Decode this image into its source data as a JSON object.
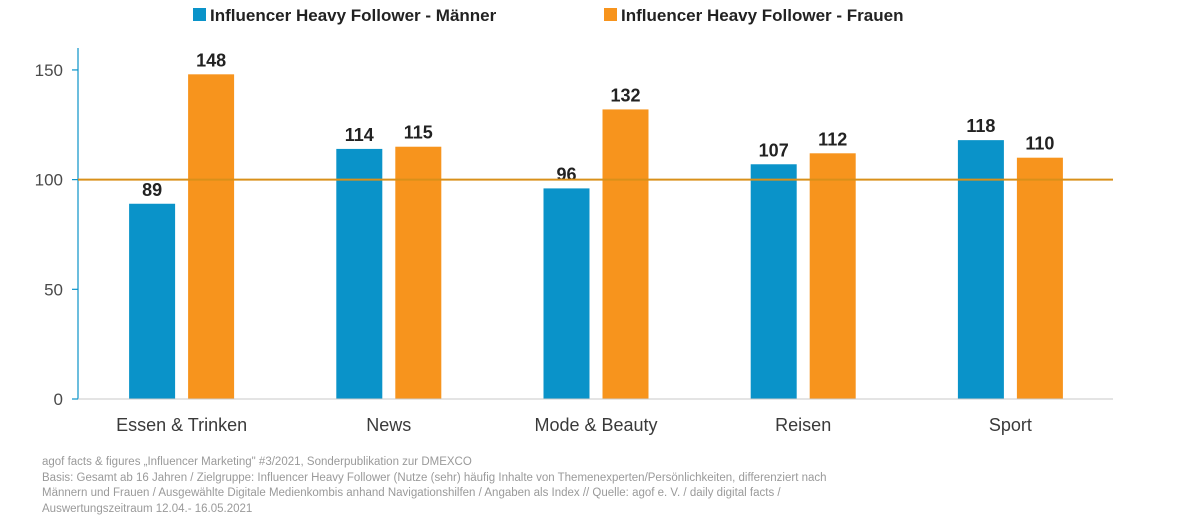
{
  "chart_data": {
    "type": "bar",
    "categories": [
      "Essen & Trinken",
      "News",
      "Mode & Beauty",
      "Reisen",
      "Sport"
    ],
    "series": [
      {
        "name": "Influencer Heavy Follower - Männer",
        "color": "#0a93c9",
        "values": [
          89,
          114,
          96,
          107,
          118
        ]
      },
      {
        "name": "Influencer Heavy Follower - Frauen",
        "color": "#f7941d",
        "values": [
          148,
          115,
          132,
          112,
          110
        ]
      }
    ],
    "ylim": [
      0,
      160
    ],
    "yticks": [
      0,
      50,
      100,
      150
    ],
    "reference_line": {
      "value": 100,
      "color": "#d9901a"
    },
    "legend_position": "top",
    "xlabel": "",
    "ylabel": "",
    "title": ""
  },
  "footnote": {
    "lines": [
      "agof facts & figures „Influencer Marketing\" #3/2021,  Sonderpublikation  zur DMEXCO",
      "Basis: Gesamt ab 16 Jahren / Zielgruppe: Influencer Heavy Follower (Nutze (sehr) häufig Inhalte von Themenexperten/Persönlichkeiten,  differenziert nach",
      "Männern und Frauen / Ausgewählte Digitale  Medienkombis anhand Navigationshilfen / Angaben als Index // Quelle: agof e. V. / daily digital facts /",
      "Auswertungszeitraum 12.04.-  16.05.2021"
    ]
  }
}
